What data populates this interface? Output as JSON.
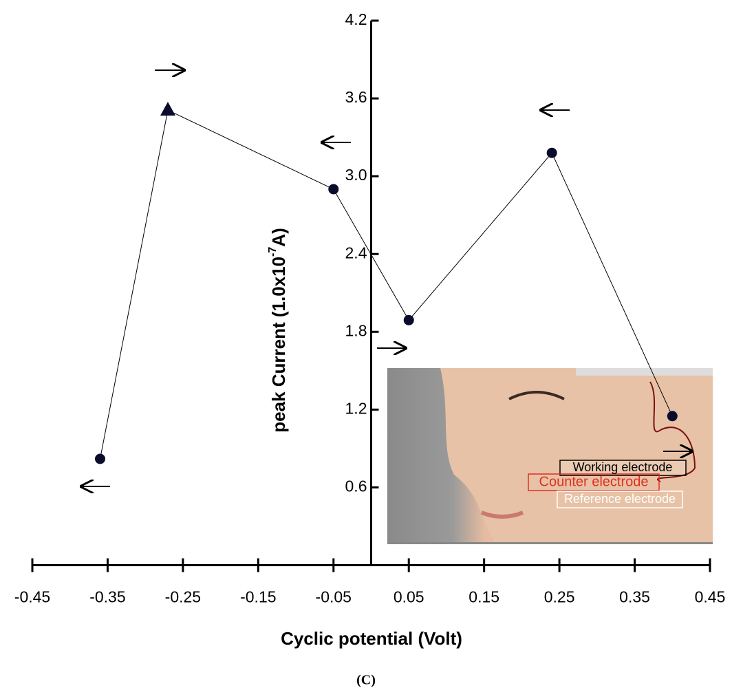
{
  "chart_data": {
    "type": "line",
    "xlabel": "Cyclic potential (Volt)",
    "ylabel": [
      "peak Current (1.0x10",
      "-7",
      "A)"
    ],
    "caption": "(C)",
    "inset_labels": [
      "Working electrode",
      "Counter electrode",
      "Reference electrode"
    ],
    "x": [
      -0.36,
      -0.27,
      -0.05,
      0.05,
      0.24,
      0.4
    ],
    "values": [
      0.82,
      3.51,
      2.9,
      1.89,
      3.18,
      1.15
    ],
    "markers": [
      "circle",
      "triangle",
      "circle",
      "circle",
      "circle",
      "circle"
    ],
    "color": "#000000",
    "marker_color": "#0b0b2e",
    "xlim": [
      -0.45,
      0.45
    ],
    "xticks": [
      -0.45,
      -0.35,
      -0.25,
      -0.15,
      -0.05,
      0.05,
      0.15,
      0.25,
      0.35,
      0.45
    ],
    "ylim": [
      0,
      4.2
    ],
    "yticks": [
      0.6,
      1.2,
      1.8,
      2.4,
      {
        "value": 3,
        "label": "3.0"
      },
      3.6,
      4.2
    ],
    "grid": false
  }
}
